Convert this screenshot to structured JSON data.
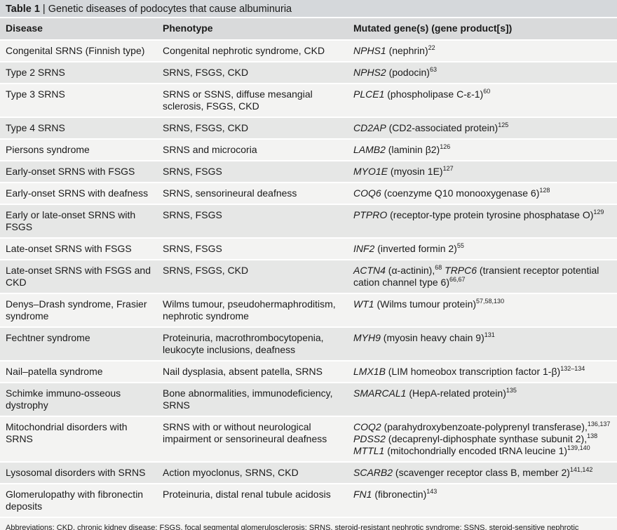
{
  "title": {
    "label": "Table 1",
    "text": "| Genetic diseases of podocytes that cause albuminuria"
  },
  "table": {
    "header": [
      "Disease",
      "Phenotype",
      "Mutated gene(s) (gene product[s])"
    ],
    "rows": [
      {
        "disease": "Congenital SRNS (Finnish type)",
        "phenotype": "Congenital nephrotic syndrome, CKD",
        "gene": [
          {
            "i": "NPHS1"
          },
          {
            "t": " (nephrin)"
          },
          {
            "s": "22"
          }
        ]
      },
      {
        "disease": "Type 2 SRNS",
        "phenotype": "SRNS, FSGS, CKD",
        "gene": [
          {
            "i": "NPHS2"
          },
          {
            "t": " (podocin)"
          },
          {
            "s": "63"
          }
        ]
      },
      {
        "disease": "Type 3 SRNS",
        "phenotype": "SRNS or SSNS, diffuse mesangial sclerosis, FSGS, CKD",
        "gene": [
          {
            "i": "PLCE1"
          },
          {
            "t": " (phospholipase C-ε-1)"
          },
          {
            "s": "60"
          }
        ]
      },
      {
        "disease": "Type 4 SRNS",
        "phenotype": "SRNS, FSGS, CKD",
        "gene": [
          {
            "i": "CD2AP"
          },
          {
            "t": " (CD2-associated protein)"
          },
          {
            "s": "125"
          }
        ]
      },
      {
        "disease": "Piersons syndrome",
        "phenotype": "SRNS and microcoria",
        "gene": [
          {
            "i": "LAMB2"
          },
          {
            "t": " (laminin β2)"
          },
          {
            "s": "126"
          }
        ]
      },
      {
        "disease": "Early-onset SRNS with FSGS",
        "phenotype": "SRNS, FSGS",
        "gene": [
          {
            "i": "MYO1E"
          },
          {
            "t": " (myosin 1E)"
          },
          {
            "s": "127"
          }
        ]
      },
      {
        "disease": "Early-onset SRNS with deafness",
        "phenotype": "SRNS, sensorineural deafness",
        "gene": [
          {
            "i": "COQ6"
          },
          {
            "t": " (coenzyme Q10 monooxygenase 6)"
          },
          {
            "s": "128"
          }
        ]
      },
      {
        "disease": "Early or late-onset SRNS with FSGS",
        "phenotype": "SRNS, FSGS",
        "gene": [
          {
            "i": "PTPRO"
          },
          {
            "t": " (receptor-type protein tyrosine phosphatase O)"
          },
          {
            "s": "129"
          }
        ]
      },
      {
        "disease": "Late-onset SRNS with FSGS",
        "phenotype": "SRNS, FSGS",
        "gene": [
          {
            "i": "INF2"
          },
          {
            "t": " (inverted formin 2)"
          },
          {
            "s": "55"
          }
        ]
      },
      {
        "disease": "Late-onset SRNS with FSGS and CKD",
        "phenotype": "SRNS, FSGS, CKD",
        "gene": [
          {
            "i": "ACTN4"
          },
          {
            "t": " (α-actinin),"
          },
          {
            "s": "68"
          },
          {
            "t": " "
          },
          {
            "i": "TRPC6"
          },
          {
            "t": " (transient receptor potential cation channel type 6)"
          },
          {
            "s": "66,67"
          }
        ]
      },
      {
        "disease": "Denys–Drash syndrome, Frasier syndrome",
        "phenotype": "Wilms tumour, pseudohermaphroditism, nephrotic syndrome",
        "gene": [
          {
            "i": "WT1"
          },
          {
            "t": " (Wilms tumour protein)"
          },
          {
            "s": "57,58,130"
          }
        ]
      },
      {
        "disease": "Fechtner syndrome",
        "phenotype": "Proteinuria, macrothrombocytopenia, leukocyte inclusions, deafness",
        "gene": [
          {
            "i": "MYH9"
          },
          {
            "t": " (myosin heavy chain 9)"
          },
          {
            "s": "131"
          }
        ]
      },
      {
        "disease": "Nail–patella syndrome",
        "phenotype": "Nail dysplasia, absent patella, SRNS",
        "gene": [
          {
            "i": "LMX1B"
          },
          {
            "t": " (LIM homeobox transcription factor 1-β)"
          },
          {
            "s": "132–134"
          }
        ]
      },
      {
        "disease": "Schimke immuno-osseous dystrophy",
        "phenotype": "Bone abnormalities, immunodeficiency, SRNS",
        "gene": [
          {
            "i": "SMARCAL1"
          },
          {
            "t": " (HepA-related protein)"
          },
          {
            "s": "135"
          }
        ]
      },
      {
        "disease": "Mitochondrial disorders with SRNS",
        "phenotype": "SRNS with or without neurological impairment or sensorineural deafness",
        "gene": [
          {
            "i": "COQ2"
          },
          {
            "t": " (parahydroxybenzoate-polyprenyl transferase),"
          },
          {
            "s": "136,137"
          },
          {
            "t": " "
          },
          {
            "i": "PDSS2"
          },
          {
            "t": " (decaprenyl-diphosphate synthase subunit 2),"
          },
          {
            "s": "138"
          },
          {
            "t": " "
          },
          {
            "i": "MTTL1"
          },
          {
            "t": " (mitochondrially encoded tRNA leucine 1)"
          },
          {
            "s": "139,140"
          }
        ]
      },
      {
        "disease": "Lysosomal disorders with SRNS",
        "phenotype": "Action myoclonus, SRNS, CKD",
        "gene": [
          {
            "i": "SCARB2"
          },
          {
            "t": " (scavenger receptor class B, member 2)"
          },
          {
            "s": "141,142"
          }
        ]
      },
      {
        "disease": "Glomerulopathy with fibronectin deposits",
        "phenotype": "Proteinuria, distal renal tubule acidosis",
        "gene": [
          {
            "i": "FN1"
          },
          {
            "t": " (fibronectin)"
          },
          {
            "s": "143"
          }
        ]
      }
    ]
  },
  "footer": "Abbreviations: CKD, chronic kidney disease; FSGS, focal segmental glomerulosclerosis; SRNS, steroid-resistant nephrotic syndrome; SSNS, steroid-sensitive nephrotic syndrome."
}
